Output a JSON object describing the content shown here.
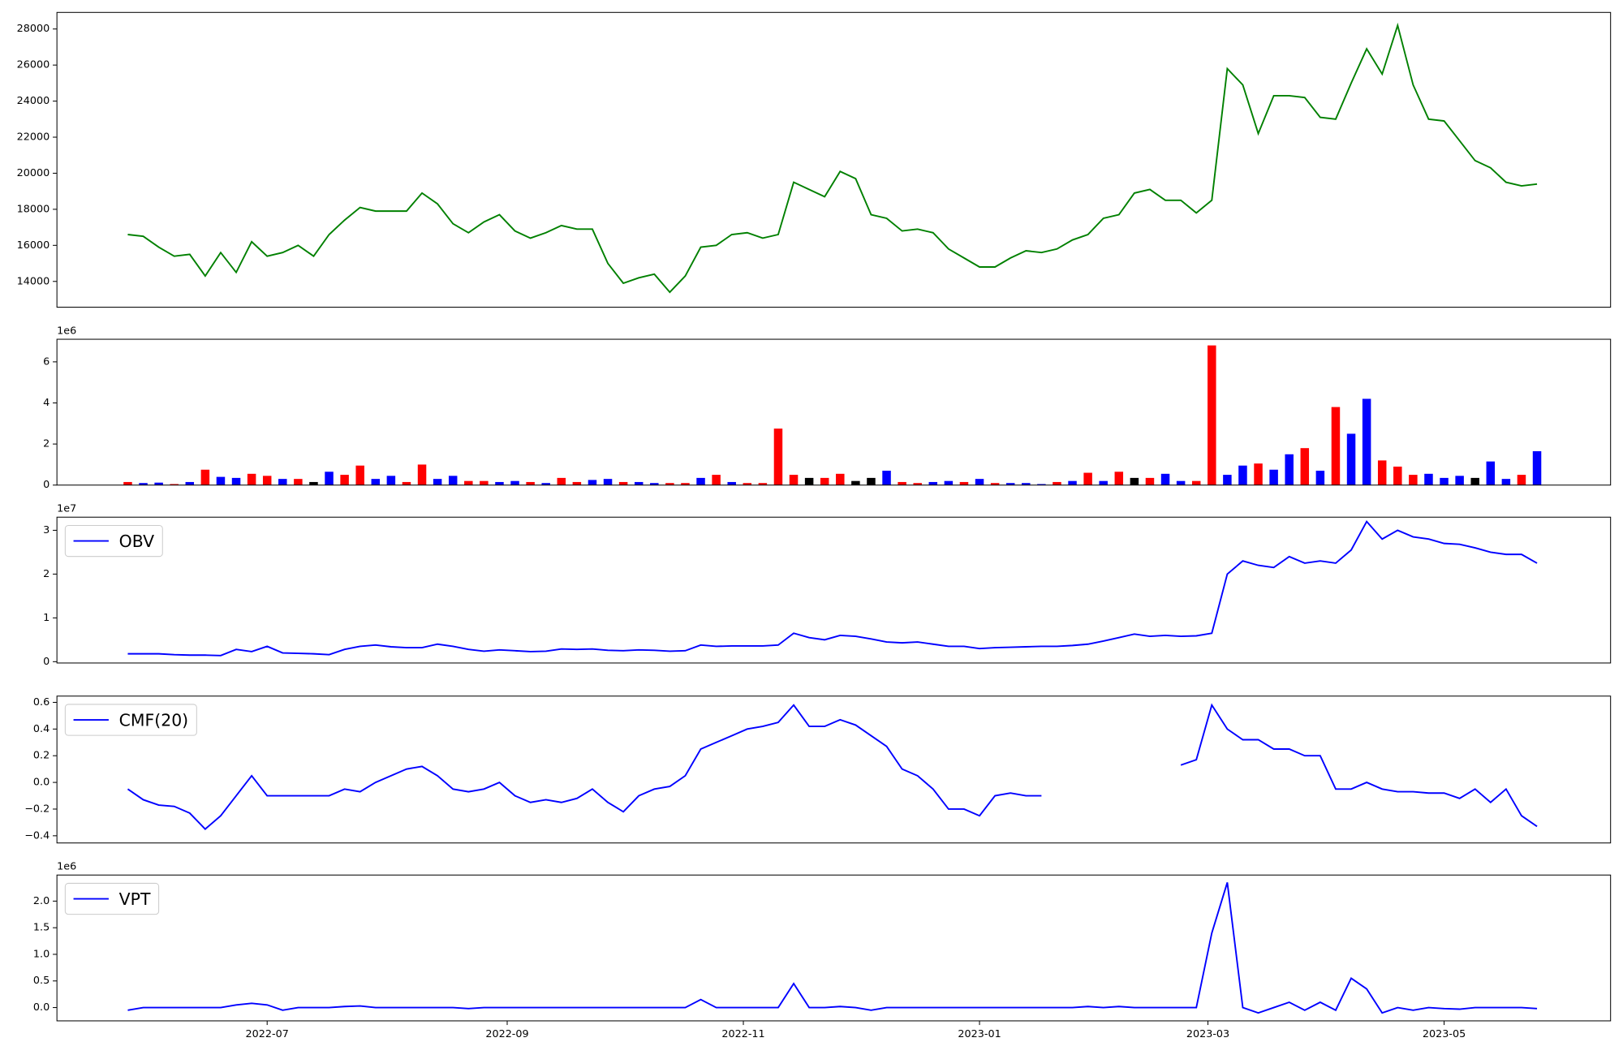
{
  "chart_data": [
    {
      "type": "line",
      "x": [
        -36,
        -32,
        -28,
        -24,
        -20,
        -16,
        -12,
        -8,
        -4,
        0,
        4,
        8,
        12,
        16,
        20,
        24,
        28,
        32,
        36,
        40,
        44,
        48,
        52,
        56,
        60,
        64,
        68,
        72,
        76,
        80,
        84,
        88,
        92,
        96,
        100,
        104,
        108,
        112,
        116,
        120,
        124,
        128,
        132,
        136,
        140,
        144,
        148,
        152,
        156,
        160,
        164,
        168,
        172,
        176,
        180,
        184,
        188,
        192,
        196,
        200,
        204,
        208,
        212,
        216,
        220,
        224,
        228,
        232,
        236,
        240,
        244,
        248,
        252,
        256,
        260,
        264,
        268,
        272,
        276,
        280,
        284,
        288,
        292,
        296,
        300,
        304,
        308,
        312,
        316,
        320,
        324,
        328
      ],
      "xlim": [
        -54.3,
        347
      ],
      "ylim": [
        12570,
        28920
      ],
      "yticks": [
        14000,
        16000,
        18000,
        20000,
        22000,
        24000,
        26000,
        28000
      ],
      "series": [
        {
          "color": "green",
          "values": [
            16600,
            16500,
            15900,
            15400,
            15500,
            14300,
            15600,
            14500,
            16200,
            15400,
            15600,
            16000,
            15400,
            16600,
            17400,
            18100,
            17900,
            17900,
            17900,
            18900,
            18300,
            17200,
            16700,
            17300,
            17700,
            16800,
            16400,
            16700,
            17100,
            16900,
            16900,
            15000,
            13900,
            14200,
            14400,
            13400,
            14300,
            15900,
            16000,
            16600,
            16700,
            16400,
            16600,
            19500,
            19100,
            18700,
            20100,
            19700,
            17700,
            17500,
            16800,
            16900,
            16700,
            15800,
            15300,
            14800,
            14800,
            15300,
            15700,
            15600,
            15800,
            16300,
            16600,
            17500,
            17700,
            18900,
            19100,
            18500,
            18500,
            17800,
            18500,
            25800,
            24900,
            22200,
            24300,
            24300,
            24200,
            23100,
            23000,
            25000,
            26900,
            25500,
            28200,
            24900,
            23000,
            22900,
            21800,
            20700,
            20300,
            19500,
            19300,
            19400
          ]
        }
      ]
    },
    {
      "type": "bar",
      "x": [
        -36,
        -32,
        -28,
        -24,
        -20,
        -16,
        -12,
        -8,
        -4,
        0,
        4,
        8,
        12,
        16,
        20,
        24,
        28,
        32,
        36,
        40,
        44,
        48,
        52,
        56,
        60,
        64,
        68,
        72,
        76,
        80,
        84,
        88,
        92,
        96,
        100,
        104,
        108,
        112,
        116,
        120,
        124,
        128,
        132,
        136,
        140,
        144,
        148,
        152,
        156,
        160,
        164,
        168,
        172,
        176,
        180,
        184,
        188,
        192,
        196,
        200,
        204,
        208,
        212,
        216,
        220,
        224,
        228,
        232,
        236,
        240,
        244,
        248,
        252,
        256,
        260,
        264,
        268,
        272,
        276,
        280,
        284,
        288,
        292,
        296,
        300,
        304,
        308,
        312,
        316,
        320,
        324,
        328
      ],
      "xlim": [
        -54.3,
        347
      ],
      "ylim": [
        0,
        7100000
      ],
      "offset_label": "1e6",
      "yticks": [
        0,
        {
          "value": 2000000,
          "label": "2"
        },
        {
          "value": 4000000,
          "label": "4"
        },
        {
          "value": 6000000,
          "label": "6"
        }
      ],
      "values": [
        150000,
        100000,
        120000,
        50000,
        150000,
        750000,
        400000,
        350000,
        550000,
        450000,
        300000,
        300000,
        150000,
        650000,
        500000,
        950000,
        300000,
        450000,
        150000,
        1000000,
        300000,
        450000,
        200000,
        200000,
        150000,
        200000,
        150000,
        100000,
        350000,
        150000,
        250000,
        300000,
        150000,
        150000,
        100000,
        100000,
        100000,
        350000,
        500000,
        150000,
        100000,
        100000,
        2750000,
        500000,
        350000,
        350000,
        550000,
        200000,
        350000,
        700000,
        150000,
        100000,
        150000,
        200000,
        150000,
        300000,
        100000,
        100000,
        100000,
        50000,
        150000,
        200000,
        600000,
        200000,
        650000,
        350000,
        350000,
        550000,
        200000,
        200000,
        6800000,
        500000,
        950000,
        1050000,
        750000,
        1500000,
        1800000,
        700000,
        3800000,
        2500000,
        4200000,
        1200000,
        900000,
        500000,
        550000,
        350000,
        450000,
        350000,
        1150000,
        300000,
        500000,
        1650000
      ],
      "colors": [
        "red",
        "blue",
        "blue",
        "red",
        "blue",
        "red",
        "blue",
        "blue",
        "red",
        "red",
        "blue",
        "red",
        "black",
        "blue",
        "red",
        "red",
        "blue",
        "blue",
        "red",
        "red",
        "blue",
        "blue",
        "red",
        "red",
        "blue",
        "blue",
        "red",
        "blue",
        "red",
        "red",
        "blue",
        "blue",
        "red",
        "blue",
        "blue",
        "red",
        "red",
        "blue",
        "red",
        "blue",
        "red",
        "red",
        "red",
        "red",
        "black",
        "red",
        "red",
        "black",
        "black",
        "blue",
        "red",
        "red",
        "blue",
        "blue",
        "red",
        "blue",
        "red",
        "blue",
        "blue",
        "blue",
        "red",
        "blue",
        "red",
        "blue",
        "red",
        "black",
        "red",
        "blue",
        "blue",
        "red",
        "red",
        "blue",
        "blue",
        "red",
        "blue",
        "blue",
        "red",
        "blue",
        "red",
        "blue",
        "blue",
        "red",
        "red",
        "red",
        "blue",
        "blue",
        "blue",
        "black",
        "blue",
        "blue",
        "red",
        "blue"
      ]
    },
    {
      "type": "line",
      "x": [
        -36,
        -32,
        -28,
        -24,
        -20,
        -16,
        -12,
        -8,
        -4,
        0,
        4,
        8,
        12,
        16,
        20,
        24,
        28,
        32,
        36,
        40,
        44,
        48,
        52,
        56,
        60,
        64,
        68,
        72,
        76,
        80,
        84,
        88,
        92,
        96,
        100,
        104,
        108,
        112,
        116,
        120,
        124,
        128,
        132,
        136,
        140,
        144,
        148,
        152,
        156,
        160,
        164,
        168,
        172,
        176,
        180,
        184,
        188,
        192,
        196,
        200,
        204,
        208,
        212,
        216,
        220,
        224,
        228,
        232,
        236,
        240,
        244,
        248,
        252,
        256,
        260,
        264,
        268,
        272,
        276,
        280,
        284,
        288,
        292,
        296,
        300,
        304,
        308,
        312,
        316,
        320,
        324,
        328
      ],
      "xlim": [
        -54.3,
        347
      ],
      "ylim": [
        -300000,
        33000000
      ],
      "offset_label": "1e7",
      "yticks": [
        0,
        {
          "value": 10000000,
          "label": "1"
        },
        {
          "value": 20000000,
          "label": "2"
        },
        {
          "value": 30000000,
          "label": "3"
        }
      ],
      "legend": "upper left",
      "series": [
        {
          "name": "OBV",
          "color": "blue",
          "values": [
            1800000,
            1800000,
            1800000,
            1600000,
            1500000,
            1500000,
            1400000,
            2800000,
            2300000,
            3500000,
            2000000,
            1900000,
            1800000,
            1600000,
            2800000,
            3500000,
            3800000,
            3400000,
            3200000,
            3200000,
            4000000,
            3500000,
            2800000,
            2400000,
            2700000,
            2500000,
            2300000,
            2400000,
            2900000,
            2800000,
            2900000,
            2600000,
            2500000,
            2700000,
            2600000,
            2400000,
            2500000,
            3800000,
            3500000,
            3600000,
            3600000,
            3600000,
            3800000,
            6500000,
            5500000,
            5000000,
            6000000,
            5800000,
            5200000,
            4500000,
            4300000,
            4500000,
            4000000,
            3500000,
            3500000,
            3000000,
            3200000,
            3300000,
            3400000,
            3500000,
            3500000,
            3700000,
            4000000,
            4700000,
            5500000,
            6300000,
            5800000,
            6000000,
            5800000,
            5900000,
            6500000,
            20000000,
            23000000,
            22000000,
            21500000,
            24000000,
            22500000,
            23000000,
            22500000,
            25500000,
            32000000,
            28000000,
            30000000,
            28500000,
            28000000,
            27000000,
            26800000,
            26000000,
            25000000,
            24500000,
            24500000,
            22500000
          ]
        }
      ]
    },
    {
      "type": "line",
      "x": [
        -36,
        -32,
        -28,
        -24,
        -20,
        -16,
        -12,
        -8,
        -4,
        0,
        4,
        8,
        12,
        16,
        20,
        24,
        28,
        32,
        36,
        40,
        44,
        48,
        52,
        56,
        60,
        64,
        68,
        72,
        76,
        80,
        84,
        88,
        92,
        96,
        100,
        104,
        108,
        112,
        116,
        120,
        124,
        128,
        132,
        136,
        140,
        144,
        148,
        152,
        156,
        160,
        164,
        168,
        172,
        176,
        180,
        184,
        188,
        192,
        196,
        200,
        204,
        208,
        212,
        216,
        220,
        224,
        228,
        232,
        236,
        240,
        244,
        248,
        252,
        256,
        260,
        264,
        268,
        272,
        276,
        280,
        284,
        288,
        292,
        296,
        300,
        304,
        308,
        312,
        316,
        320,
        324,
        328
      ],
      "xlim": [
        -54.3,
        347
      ],
      "ylim": [
        -0.454,
        0.647
      ],
      "yticks": [
        {
          "value": -0.4,
          "label": "−0.4"
        },
        {
          "value": -0.2,
          "label": "−0.2"
        },
        {
          "value": 0,
          "label": "0.0"
        },
        0.2,
        0.4,
        0.6
      ],
      "legend": "upper left",
      "series": [
        {
          "name": "CMF(20)",
          "color": "blue",
          "values": [
            -0.05,
            -0.13,
            -0.17,
            -0.18,
            -0.23,
            -0.35,
            -0.25,
            -0.1,
            0.05,
            -0.1,
            -0.1,
            -0.1,
            -0.1,
            -0.1,
            -0.05,
            -0.07,
            0.0,
            0.05,
            0.1,
            0.12,
            0.05,
            -0.05,
            -0.07,
            -0.05,
            0.0,
            -0.1,
            -0.15,
            -0.13,
            -0.15,
            -0.12,
            -0.05,
            -0.15,
            -0.22,
            -0.1,
            -0.05,
            -0.03,
            0.05,
            0.25,
            0.3,
            0.35,
            0.4,
            0.42,
            0.45,
            0.58,
            0.42,
            0.42,
            0.47,
            0.43,
            0.35,
            0.27,
            0.1,
            0.05,
            -0.05,
            -0.2,
            -0.2,
            -0.25,
            -0.1,
            -0.08,
            -0.1,
            -0.1,
            null,
            null,
            null,
            null,
            null,
            null,
            null,
            null,
            0.13,
            0.17,
            0.58,
            0.4,
            0.32,
            0.32,
            0.25,
            0.25,
            0.2,
            0.2,
            -0.05,
            -0.05,
            0.0,
            -0.05,
            -0.07,
            -0.07,
            -0.08,
            -0.08,
            -0.12,
            -0.05,
            -0.15,
            -0.05,
            -0.25,
            -0.33
          ]
        }
      ]
    },
    {
      "type": "line",
      "x": [
        -36,
        -32,
        -28,
        -24,
        -20,
        -16,
        -12,
        -8,
        -4,
        0,
        4,
        8,
        12,
        16,
        20,
        24,
        28,
        32,
        36,
        40,
        44,
        48,
        52,
        56,
        60,
        64,
        68,
        72,
        76,
        80,
        84,
        88,
        92,
        96,
        100,
        104,
        108,
        112,
        116,
        120,
        124,
        128,
        132,
        136,
        140,
        144,
        148,
        152,
        156,
        160,
        164,
        168,
        172,
        176,
        180,
        184,
        188,
        192,
        196,
        200,
        204,
        208,
        212,
        216,
        220,
        224,
        228,
        232,
        236,
        240,
        244,
        248,
        252,
        256,
        260,
        264,
        268,
        272,
        276,
        280,
        284,
        288,
        292,
        296,
        300,
        304,
        308,
        312,
        316,
        320,
        324,
        328
      ],
      "xlim": [
        -54.3,
        347
      ],
      "xticks": [
        {
          "value": 0,
          "label": "2022-07"
        },
        {
          "value": 62,
          "label": "2022-09"
        },
        {
          "value": 123,
          "label": "2022-11"
        },
        {
          "value": 184,
          "label": "2023-01"
        },
        {
          "value": 243,
          "label": "2023-03"
        },
        {
          "value": 304,
          "label": "2023-05"
        }
      ],
      "ylim": [
        -250000,
        2490000
      ],
      "offset_label": "1e6",
      "yticks": [
        {
          "value": 0,
          "label": "0.0"
        },
        {
          "value": 500000,
          "label": "0.5"
        },
        {
          "value": 1000000,
          "label": "1.0"
        },
        {
          "value": 1500000,
          "label": "1.5"
        },
        {
          "value": 2000000,
          "label": "2.0"
        }
      ],
      "legend": "upper left",
      "series": [
        {
          "name": "VPT",
          "color": "blue",
          "values": [
            -50000,
            0,
            0,
            0,
            0,
            0,
            0,
            50000,
            80000,
            50000,
            -50000,
            0,
            0,
            0,
            20000,
            30000,
            0,
            0,
            0,
            0,
            0,
            0,
            -20000,
            0,
            0,
            0,
            0,
            0,
            0,
            0,
            0,
            0,
            0,
            0,
            0,
            0,
            0,
            150000,
            0,
            0,
            0,
            0,
            0,
            450000,
            0,
            0,
            20000,
            0,
            -50000,
            0,
            0,
            0,
            0,
            0,
            0,
            0,
            0,
            0,
            0,
            0,
            0,
            0,
            20000,
            0,
            20000,
            0,
            0,
            0,
            0,
            0,
            1400000,
            2350000,
            0,
            -100000,
            0,
            100000,
            -50000,
            100000,
            -50000,
            550000,
            350000,
            -100000,
            0,
            -50000,
            0,
            -20000,
            -30000,
            0,
            0,
            0,
            0,
            -20000
          ]
        }
      ]
    }
  ]
}
